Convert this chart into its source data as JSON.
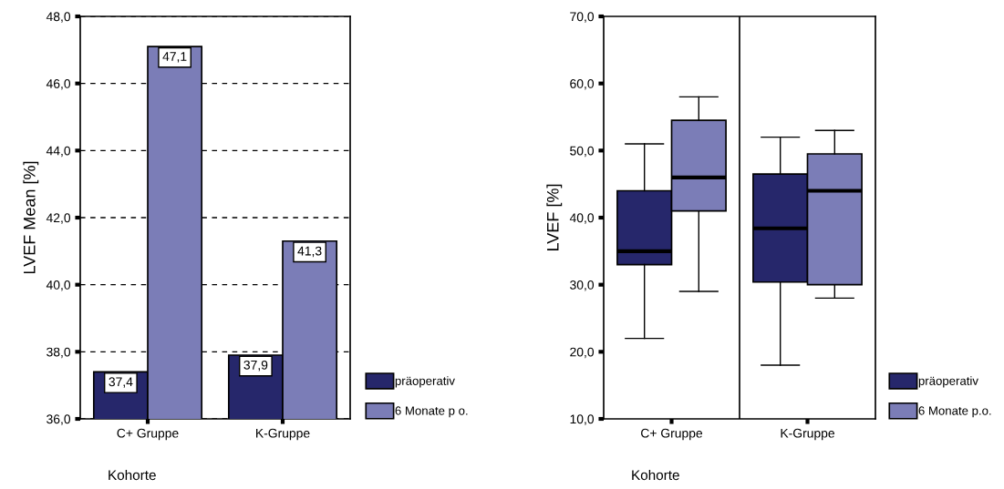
{
  "chart_data": [
    {
      "type": "bar",
      "ylabel": "LVEF Mean [%]",
      "xlabel": "Kohorte",
      "categories": [
        "C+ Gruppe",
        "K-Gruppe"
      ],
      "series": [
        {
          "name": "präoperativ",
          "color": "#26276b",
          "values": [
            37.4,
            37.9
          ],
          "value_labels": [
            "37,4",
            "37,9"
          ]
        },
        {
          "name": "6 Monate p o.",
          "color": "#7b7db7",
          "values": [
            47.1,
            41.3
          ],
          "value_labels": [
            "47,1",
            "41,3"
          ]
        }
      ],
      "ylim": [
        36,
        48
      ],
      "yticks": [
        {
          "value": 36,
          "label": "36,0"
        },
        {
          "value": 38,
          "label": "38,0"
        },
        {
          "value": 40,
          "label": "40,0"
        },
        {
          "value": 42,
          "label": "42,0"
        },
        {
          "value": 44,
          "label": "44,0"
        },
        {
          "value": 46,
          "label": "46,0"
        },
        {
          "value": 48,
          "label": "48,0"
        }
      ],
      "grid": "y",
      "legend": "bottom right"
    },
    {
      "type": "box",
      "ylabel": "LVEF [%]",
      "xlabel": "Kohorte",
      "categories": [
        "C+ Gruppe",
        "K-Gruppe"
      ],
      "series": [
        {
          "name": "präoperativ",
          "color": "#26276b",
          "boxes": [
            {
              "low": 22,
              "q1": 33,
              "median": 35,
              "q3": 44,
              "high": 51
            },
            {
              "low": 18,
              "q1": 30.4,
              "median": 38.4,
              "q3": 46.5,
              "high": 52
            }
          ]
        },
        {
          "name": "6 Monate p.o.",
          "color": "#7b7db7",
          "boxes": [
            {
              "low": 29,
              "q1": 41,
              "median": 46,
              "q3": 54.5,
              "high": 58
            },
            {
              "low": 28,
              "q1": 30,
              "median": 44,
              "q3": 49.5,
              "high": 53
            }
          ]
        }
      ],
      "ylim": [
        10,
        70
      ],
      "yticks": [
        {
          "value": 10,
          "label": "10,0"
        },
        {
          "value": 20,
          "label": "20,0"
        },
        {
          "value": 30,
          "label": "30,0"
        },
        {
          "value": 40,
          "label": "40,0"
        },
        {
          "value": 50,
          "label": "50,0"
        },
        {
          "value": 60,
          "label": "60,0"
        },
        {
          "value": 70,
          "label": "70,0"
        }
      ],
      "legend": "bottom right"
    }
  ]
}
